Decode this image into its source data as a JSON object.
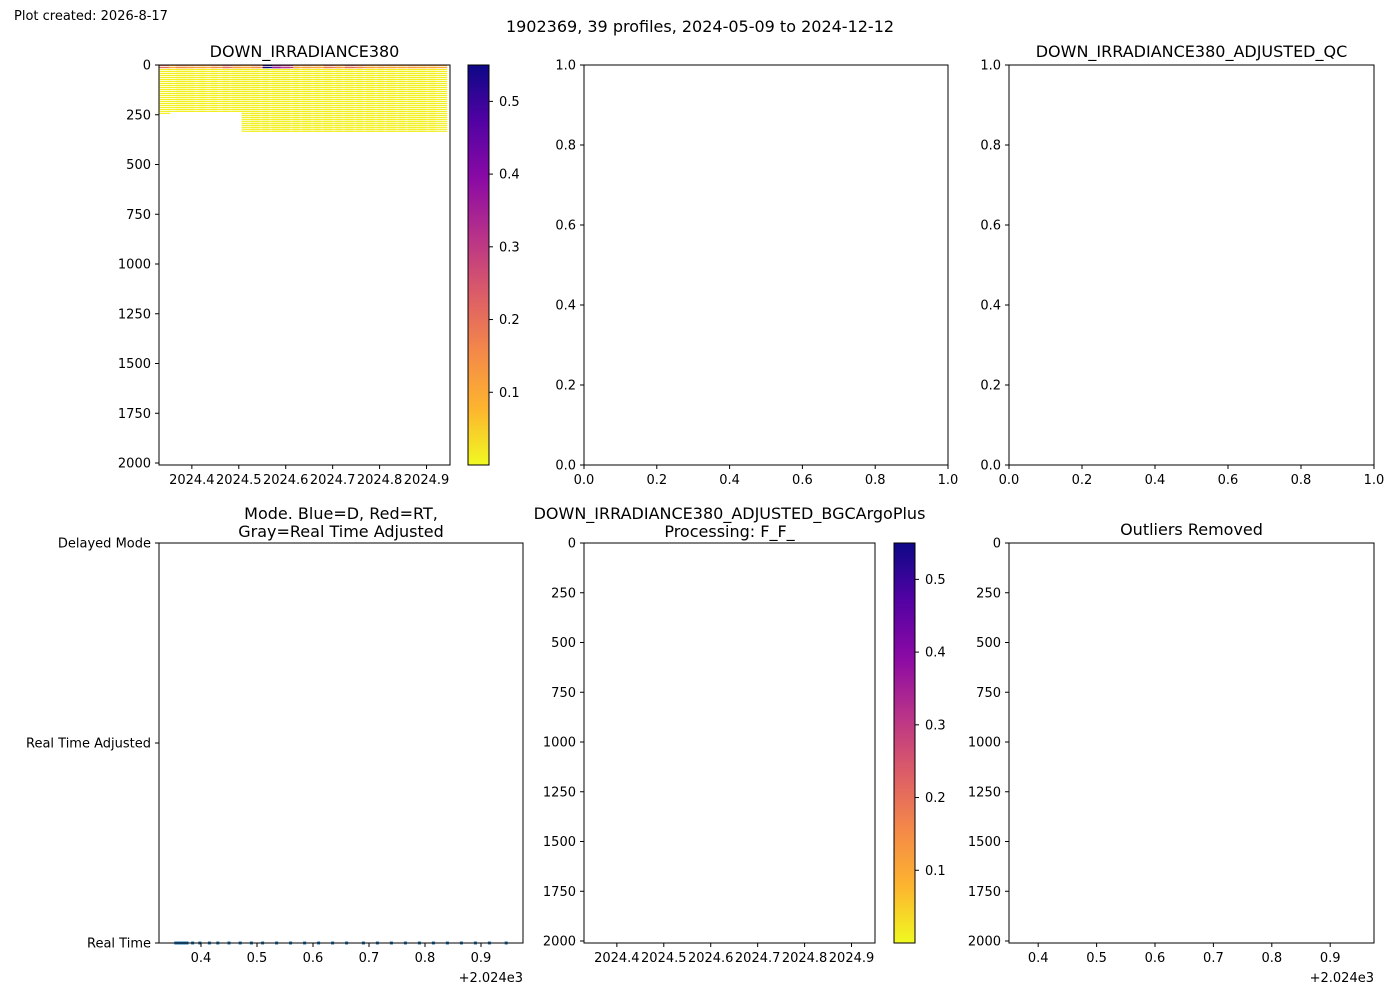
{
  "figure": {
    "created": "Plot created: 2026-8-17",
    "suptitle": "1902369, 39 profiles, 2024-05-09 to 2024-12-12"
  },
  "colormap": {
    "name": "plasma_r",
    "stops": [
      "#f0f921",
      "#fdb42f",
      "#f48849",
      "#db5c68",
      "#b83289",
      "#8b0aa5",
      "#5302a3",
      "#0d0887"
    ],
    "ticks": [
      "0.1",
      "0.2",
      "0.3",
      "0.4",
      "0.5"
    ],
    "ticks_values": [
      0.1,
      0.2,
      0.3,
      0.4,
      0.5
    ],
    "range": [
      0.0,
      0.55
    ]
  },
  "colors": {
    "mode_series": "#1f77b4"
  },
  "chart_data": [
    {
      "id": "raw",
      "type": "heatmap",
      "title": "DOWN_IRRADIANCE380",
      "xlim": [
        2024.35,
        2024.97
      ],
      "ylim": [
        2010,
        0
      ],
      "x_ticks": [
        "2024.4",
        "2024.5",
        "2024.6",
        "2024.7",
        "2024.8",
        "2024.9"
      ],
      "x_ticks_values": [
        2024.42,
        2024.52,
        2024.62,
        2024.72,
        2024.82,
        2024.92
      ],
      "y_ticks": [
        "0",
        "250",
        "500",
        "750",
        "1000",
        "1250",
        "1500",
        "1750",
        "2000"
      ],
      "y_ticks_values": [
        0,
        250,
        500,
        750,
        1000,
        1250,
        1500,
        1750,
        2000
      ],
      "profiles": [
        {
          "date": 2024.355,
          "max_depth": 250,
          "surface_value": 0.2
        },
        {
          "date": 2024.39,
          "max_depth": 240,
          "surface_value": 0.1
        },
        {
          "date": 2024.405,
          "max_depth": 240,
          "surface_value": 0.15
        },
        {
          "date": 2024.43,
          "max_depth": 240,
          "surface_value": 0.12
        },
        {
          "date": 2024.455,
          "max_depth": 240,
          "surface_value": 0.1
        },
        {
          "date": 2024.48,
          "max_depth": 240,
          "surface_value": 0.14
        },
        {
          "date": 2024.505,
          "max_depth": 240,
          "surface_value": 0.2
        },
        {
          "date": 2024.525,
          "max_depth": 240,
          "surface_value": 0.12
        },
        {
          "date": 2024.545,
          "max_depth": 340,
          "surface_value": 0.1
        },
        {
          "date": 2024.565,
          "max_depth": 340,
          "surface_value": 0.15
        },
        {
          "date": 2024.59,
          "max_depth": 340,
          "surface_value": 0.55
        },
        {
          "date": 2024.61,
          "max_depth": 340,
          "surface_value": 0.35
        },
        {
          "date": 2024.63,
          "max_depth": 340,
          "surface_value": 0.3
        },
        {
          "date": 2024.655,
          "max_depth": 340,
          "surface_value": 0.1
        },
        {
          "date": 2024.675,
          "max_depth": 340,
          "surface_value": 0.12
        },
        {
          "date": 2024.7,
          "max_depth": 340,
          "surface_value": 0.1
        },
        {
          "date": 2024.72,
          "max_depth": 340,
          "surface_value": 0.18
        },
        {
          "date": 2024.745,
          "max_depth": 340,
          "surface_value": 0.12
        },
        {
          "date": 2024.765,
          "max_depth": 340,
          "surface_value": 0.2
        },
        {
          "date": 2024.79,
          "max_depth": 340,
          "surface_value": 0.15
        },
        {
          "date": 2024.81,
          "max_depth": 340,
          "surface_value": 0.1
        },
        {
          "date": 2024.835,
          "max_depth": 340,
          "surface_value": 0.12
        },
        {
          "date": 2024.855,
          "max_depth": 340,
          "surface_value": 0.1
        },
        {
          "date": 2024.88,
          "max_depth": 340,
          "surface_value": 0.1
        },
        {
          "date": 2024.9,
          "max_depth": 340,
          "surface_value": 0.12
        },
        {
          "date": 2024.92,
          "max_depth": 340,
          "surface_value": 0.1
        },
        {
          "date": 2024.945,
          "max_depth": 340,
          "surface_value": 0.1
        }
      ]
    },
    {
      "id": "empty_mid",
      "type": "scatter",
      "title": "",
      "xlim": [
        0,
        1
      ],
      "ylim": [
        0,
        1
      ],
      "x_ticks": [
        "0.0",
        "0.2",
        "0.4",
        "0.6",
        "0.8",
        "1.0"
      ],
      "x_ticks_values": [
        0,
        0.2,
        0.4,
        0.6,
        0.8,
        1.0
      ],
      "y_ticks": [
        "0.0",
        "0.2",
        "0.4",
        "0.6",
        "0.8",
        "1.0"
      ],
      "y_ticks_values": [
        0,
        0.2,
        0.4,
        0.6,
        0.8,
        1.0
      ]
    },
    {
      "id": "qc",
      "type": "scatter",
      "title": "DOWN_IRRADIANCE380_ADJUSTED_QC",
      "xlim": [
        0,
        1
      ],
      "ylim": [
        0,
        1
      ],
      "x_ticks": [
        "0.0",
        "0.2",
        "0.4",
        "0.6",
        "0.8",
        "1.0"
      ],
      "x_ticks_values": [
        0,
        0.2,
        0.4,
        0.6,
        0.8,
        1.0
      ],
      "y_ticks": [
        "0.0",
        "0.2",
        "0.4",
        "0.6",
        "0.8",
        "1.0"
      ],
      "y_ticks_values": [
        0,
        0.2,
        0.4,
        0.6,
        0.8,
        1.0
      ]
    },
    {
      "id": "mode",
      "type": "scatter",
      "title_lines": [
        "Mode. Blue=D, Red=RT,",
        "Gray=Real Time Adjusted"
      ],
      "xlim": [
        2024.325,
        2024.975
      ],
      "ylim": [
        0,
        2
      ],
      "x_ticks": [
        "0.4",
        "0.5",
        "0.6",
        "0.7",
        "0.8",
        "0.9"
      ],
      "x_ticks_values": [
        2024.4,
        2024.5,
        2024.6,
        2024.7,
        2024.8,
        2024.9
      ],
      "x_offset_label": "+2.024e3",
      "y_ticks": [
        "Real Time",
        "Real Time Adjusted",
        "Delayed Mode"
      ],
      "y_ticks_values": [
        0,
        1,
        2
      ],
      "points_x": [
        2024.355,
        2024.36,
        2024.365,
        2024.37,
        2024.375,
        2024.385,
        2024.398,
        2024.415,
        2024.43,
        2024.45,
        2024.47,
        2024.49,
        2024.51,
        2024.535,
        2024.56,
        2024.585,
        2024.61,
        2024.635,
        2024.66,
        2024.69,
        2024.715,
        2024.74,
        2024.765,
        2024.79,
        2024.815,
        2024.84,
        2024.865,
        2024.89,
        2024.915,
        2024.945
      ],
      "points_y_value": 0
    },
    {
      "id": "adjusted",
      "type": "heatmap",
      "title_lines": [
        "DOWN_IRRADIANCE380_ADJUSTED_BGCArgoPlus",
        "Processing: F_F_"
      ],
      "xlim": [
        2024.35,
        2024.97
      ],
      "ylim": [
        2010,
        0
      ],
      "x_ticks": [
        "2024.4",
        "2024.5",
        "2024.6",
        "2024.7",
        "2024.8",
        "2024.9"
      ],
      "x_ticks_values": [
        2024.42,
        2024.52,
        2024.62,
        2024.72,
        2024.82,
        2024.92
      ],
      "y_ticks": [
        "0",
        "250",
        "500",
        "750",
        "1000",
        "1250",
        "1500",
        "1750",
        "2000"
      ],
      "y_ticks_values": [
        0,
        250,
        500,
        750,
        1000,
        1250,
        1500,
        1750,
        2000
      ],
      "profiles": []
    },
    {
      "id": "outliers",
      "type": "scatter",
      "title": "Outliers Removed",
      "xlim": [
        2024.35,
        2024.975
      ],
      "ylim": [
        2010,
        0
      ],
      "x_ticks": [
        "0.4",
        "0.5",
        "0.6",
        "0.7",
        "0.8",
        "0.9"
      ],
      "x_ticks_values": [
        2024.4,
        2024.5,
        2024.6,
        2024.7,
        2024.8,
        2024.9
      ],
      "x_offset_label": "+2.024e3",
      "y_ticks": [
        "0",
        "250",
        "500",
        "750",
        "1000",
        "1250",
        "1500",
        "1750",
        "2000"
      ],
      "y_ticks_values": [
        0,
        250,
        500,
        750,
        1000,
        1250,
        1500,
        1750,
        2000
      ]
    }
  ]
}
